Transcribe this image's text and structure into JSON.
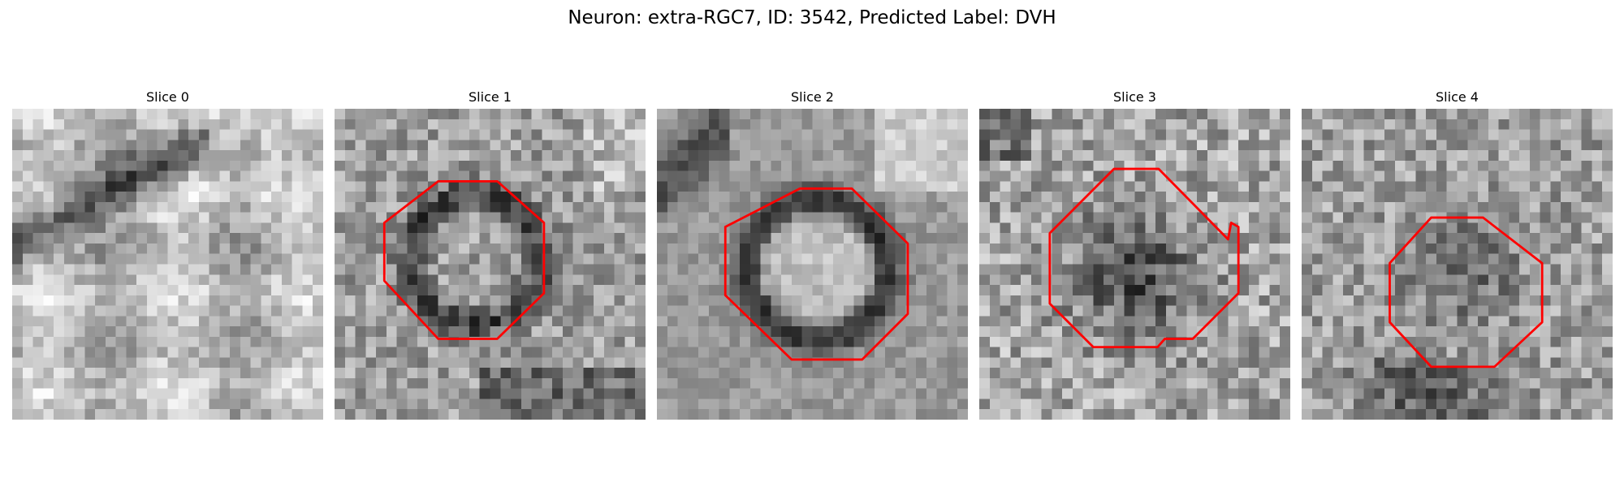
{
  "title": "Neuron: extra-RGC7, ID: 3542, Predicted Label: DVH",
  "contour_color": "#ff0000",
  "panels": [
    {
      "label": "Slice 0",
      "has_contour": false
    },
    {
      "label": "Slice 1",
      "has_contour": true
    },
    {
      "label": "Slice 2",
      "has_contour": true
    },
    {
      "label": "Slice 3",
      "has_contour": true
    },
    {
      "label": "Slice 4",
      "has_contour": true
    }
  ]
}
